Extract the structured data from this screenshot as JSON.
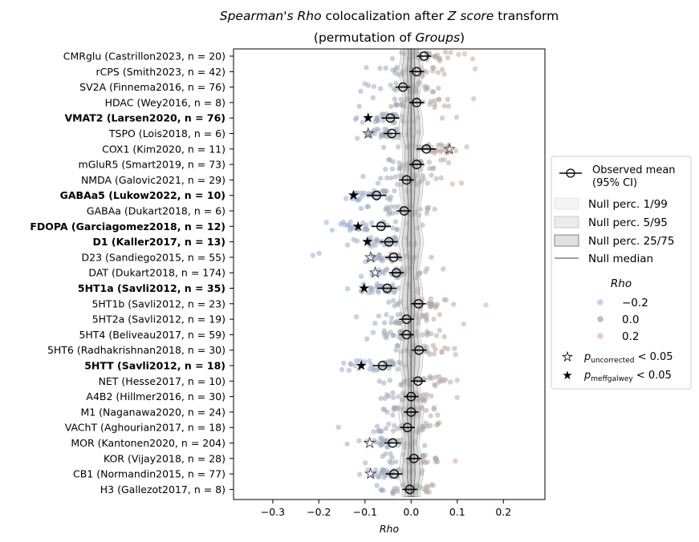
{
  "chart_data": {
    "type": "scatter",
    "title": {
      "part1": "Spearman's Rho",
      "part2": " colocalization after ",
      "part3": "Z score",
      "part4": " transform"
    },
    "subtitle": {
      "part1": "(permutation of ",
      "part2": "Groups",
      "part3": ")"
    },
    "xlabel": "Rho",
    "xlim": [
      -0.385,
      0.29
    ],
    "xticks": [
      -0.3,
      -0.2,
      -0.1,
      0.0,
      0.1,
      0.2
    ],
    "xtick_labels": [
      "−0.3",
      "−0.2",
      "−0.1",
      "0.0",
      "0.1",
      "0.2"
    ],
    "categories": [
      {
        "label": "CMRglu (Castrillon2023, n = 20)",
        "bold": false,
        "mean": 0.028,
        "ci": [
          0.012,
          0.044
        ],
        "star": "none",
        "star_x": null
      },
      {
        "label": "rCPS (Smith2023, n = 42)",
        "bold": false,
        "mean": 0.012,
        "ci": [
          -0.004,
          0.028
        ],
        "star": "none",
        "star_x": null
      },
      {
        "label": "SV2A (Finnema2016, n = 76)",
        "bold": false,
        "mean": -0.018,
        "ci": [
          -0.034,
          -0.002
        ],
        "star": "none",
        "star_x": null
      },
      {
        "label": "HDAC (Wey2016, n = 8)",
        "bold": false,
        "mean": 0.012,
        "ci": [
          -0.004,
          0.028
        ],
        "star": "none",
        "star_x": null
      },
      {
        "label": "VMAT2 (Larsen2020, n = 76)",
        "bold": true,
        "mean": -0.045,
        "ci": [
          -0.064,
          -0.026
        ],
        "star": "filled",
        "star_x": -0.093
      },
      {
        "label": "TSPO (Lois2018, n = 6)",
        "bold": false,
        "mean": -0.042,
        "ci": [
          -0.06,
          -0.024
        ],
        "star": "open",
        "star_x": -0.093
      },
      {
        "label": "COX1 (Kim2020, n = 11)",
        "bold": false,
        "mean": 0.033,
        "ci": [
          0.012,
          0.054
        ],
        "star": "open",
        "star_x": 0.083
      },
      {
        "label": "mGluR5 (Smart2019, n = 73)",
        "bold": false,
        "mean": 0.012,
        "ci": [
          -0.004,
          0.028
        ],
        "star": "none",
        "star_x": null
      },
      {
        "label": "NMDA (Galovic2021, n = 29)",
        "bold": false,
        "mean": -0.01,
        "ci": [
          -0.026,
          0.006
        ],
        "star": "none",
        "star_x": null
      },
      {
        "label": "GABAa5 (Lukow2022, n = 10)",
        "bold": true,
        "mean": -0.075,
        "ci": [
          -0.096,
          -0.054
        ],
        "star": "filled",
        "star_x": -0.125
      },
      {
        "label": "GABAa (Dukart2018, n = 6)",
        "bold": false,
        "mean": -0.015,
        "ci": [
          -0.031,
          0.001
        ],
        "star": "none",
        "star_x": null
      },
      {
        "label": "FDOPA (Garciagomez2018, n = 12)",
        "bold": true,
        "mean": -0.065,
        "ci": [
          -0.086,
          -0.044
        ],
        "star": "filled",
        "star_x": -0.115
      },
      {
        "label": "D1 (Kaller2017, n = 13)",
        "bold": true,
        "mean": -0.048,
        "ci": [
          -0.067,
          -0.029
        ],
        "star": "filled",
        "star_x": -0.095
      },
      {
        "label": "D23 (Sandiego2015, n = 55)",
        "bold": false,
        "mean": -0.038,
        "ci": [
          -0.056,
          -0.02
        ],
        "star": "open",
        "star_x": -0.088
      },
      {
        "label": "DAT (Dukart2018, n = 174)",
        "bold": false,
        "mean": -0.032,
        "ci": [
          -0.048,
          -0.016
        ],
        "star": "open",
        "star_x": -0.078
      },
      {
        "label": "5HT1a (Savli2012, n = 35)",
        "bold": true,
        "mean": -0.052,
        "ci": [
          -0.073,
          -0.031
        ],
        "star": "filled",
        "star_x": -0.102
      },
      {
        "label": "5HT1b (Savli2012, n = 23)",
        "bold": false,
        "mean": 0.016,
        "ci": [
          0.0,
          0.032
        ],
        "star": "none",
        "star_x": null
      },
      {
        "label": "5HT2a (Savli2012, n = 19)",
        "bold": false,
        "mean": -0.01,
        "ci": [
          -0.026,
          0.006
        ],
        "star": "none",
        "star_x": null
      },
      {
        "label": "5HT4 (Beliveau2017, n = 59)",
        "bold": false,
        "mean": -0.01,
        "ci": [
          -0.026,
          0.006
        ],
        "star": "none",
        "star_x": null
      },
      {
        "label": "5HT6 (Radhakrishnan2018, n = 30)",
        "bold": false,
        "mean": 0.017,
        "ci": [
          0.001,
          0.033
        ],
        "star": "none",
        "star_x": null
      },
      {
        "label": "5HTT (Savli2012, n = 18)",
        "bold": true,
        "mean": -0.062,
        "ci": [
          -0.083,
          -0.041
        ],
        "star": "filled",
        "star_x": -0.108
      },
      {
        "label": "NET (Hesse2017, n = 10)",
        "bold": false,
        "mean": 0.015,
        "ci": [
          -0.001,
          0.031
        ],
        "star": "none",
        "star_x": null
      },
      {
        "label": "A4B2 (Hillmer2016, n = 30)",
        "bold": false,
        "mean": 0.0,
        "ci": [
          -0.016,
          0.016
        ],
        "star": "none",
        "star_x": null
      },
      {
        "label": "M1 (Naganawa2020, n = 24)",
        "bold": false,
        "mean": 0.0,
        "ci": [
          -0.016,
          0.016
        ],
        "star": "none",
        "star_x": null
      },
      {
        "label": "VAChT (Aghourian2017, n = 18)",
        "bold": false,
        "mean": -0.008,
        "ci": [
          -0.024,
          0.008
        ],
        "star": "none",
        "star_x": null
      },
      {
        "label": "MOR (Kantonen2020, n = 204)",
        "bold": false,
        "mean": -0.04,
        "ci": [
          -0.058,
          -0.022
        ],
        "star": "open",
        "star_x": -0.09
      },
      {
        "label": "KOR (Vijay2018, n = 28)",
        "bold": false,
        "mean": 0.006,
        "ci": [
          -0.01,
          0.022
        ],
        "star": "none",
        "star_x": null
      },
      {
        "label": "CB1 (Normandin2015, n = 77)",
        "bold": false,
        "mean": -0.037,
        "ci": [
          -0.055,
          -0.019
        ],
        "star": "open",
        "star_x": -0.088
      },
      {
        "label": "H3 (Gallezot2017, n = 8)",
        "bold": false,
        "mean": -0.003,
        "ci": [
          -0.019,
          0.013
        ],
        "star": "none",
        "star_x": null
      }
    ],
    "null_band_halfwidth": {
      "p1_99": 0.022,
      "p5_95": 0.016,
      "p25_75": 0.007
    },
    "colormap": {
      "low": "#93aee6",
      "mid": "#a6a6a6",
      "high": "#e6a6a6",
      "range": [
        -0.2,
        0.2
      ]
    },
    "legend": {
      "placement": "right",
      "observed_line1": "Observed mean",
      "observed_line2": "(95% CI)",
      "null1": "Null perc. 1/99",
      "null2": "Null perc. 5/95",
      "null3": "Null perc. 25/75",
      "null_median": "Null median",
      "hue_title": "Rho",
      "hue_entries": [
        {
          "label": "−0.2",
          "color": "#c3d1ec"
        },
        {
          "label": "0.0",
          "color": "#bdbdbd"
        },
        {
          "label": "0.2",
          "color": "#efc9c9"
        }
      ],
      "p_symbol": "p",
      "star_open_sub": "uncorrected",
      "star_filled_sub": "meffgalwey",
      "threshold": " < 0.05"
    }
  }
}
